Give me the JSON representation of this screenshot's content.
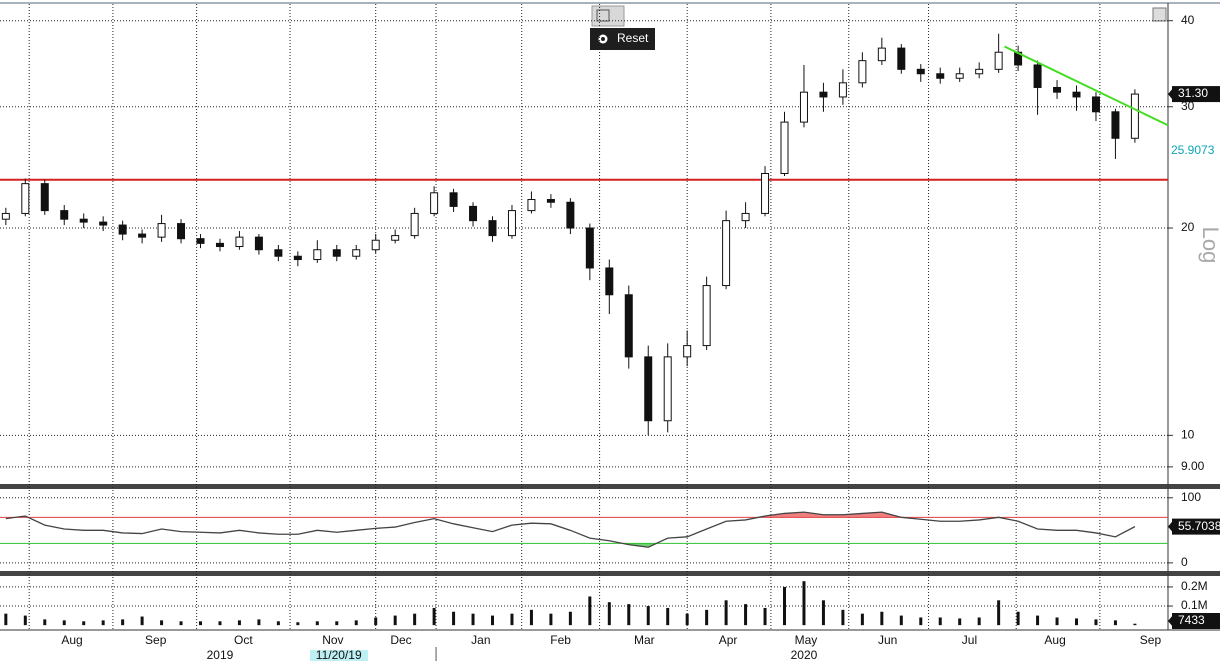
{
  "chart_data": [
    {
      "type": "candlestick",
      "log_scale": true,
      "grid": true,
      "up_color": "#ffffff",
      "down_color": "#111111",
      "ylim": [
        8.47,
        42.3
      ],
      "yticks": [
        40,
        30,
        20,
        10,
        {
          "value": 9,
          "label": "9.00"
        }
      ],
      "axis_label": "Log",
      "open": [
        20.6,
        21.0,
        23.2,
        21.2,
        20.6,
        20.4,
        20.2,
        19.6,
        19.4,
        20.3,
        19.3,
        19.0,
        18.8,
        19.4,
        18.6,
        18.2,
        18.0,
        18.6,
        18.2,
        18.6,
        19.2,
        19.5,
        21.0,
        22.5,
        21.5,
        20.5,
        19.5,
        21.2,
        22.0,
        21.8,
        20.0,
        17.5,
        16.0,
        13.0,
        10.5,
        13.0,
        13.5,
        16.5,
        20.5,
        21.0,
        24.0,
        28.5,
        31.5,
        31.0,
        32.5,
        35.0,
        36.5,
        34.0,
        33.5,
        33.0,
        33.5,
        34.0,
        36.0,
        34.5,
        32.0,
        31.5,
        31.0,
        29.5,
        27.0
      ],
      "high": [
        21.4,
        23.6,
        23.5,
        21.6,
        21.0,
        20.8,
        20.5,
        19.9,
        20.9,
        20.6,
        19.6,
        19.3,
        19.8,
        19.6,
        18.9,
        18.5,
        19.2,
        18.9,
        18.9,
        19.6,
        19.9,
        21.4,
        23.0,
        22.8,
        21.8,
        20.8,
        21.6,
        22.6,
        22.4,
        22.1,
        20.3,
        18.0,
        16.5,
        13.5,
        13.6,
        14.2,
        17.0,
        21.2,
        21.8,
        24.6,
        29.5,
        34.5,
        32.5,
        34.0,
        36.0,
        37.8,
        37.0,
        34.6,
        34.2,
        34.2,
        34.8,
        38.3,
        36.8,
        35.0,
        32.8,
        32.2,
        31.5,
        29.8,
        31.8
      ],
      "low": [
        20.2,
        20.8,
        20.9,
        20.2,
        20.0,
        19.8,
        19.2,
        19.0,
        19.1,
        19.0,
        18.7,
        18.5,
        18.6,
        18.3,
        17.9,
        17.6,
        17.8,
        17.9,
        18.0,
        18.4,
        19.0,
        19.3,
        20.8,
        21.1,
        20.1,
        19.1,
        19.3,
        21.0,
        21.4,
        19.6,
        16.8,
        15.0,
        12.5,
        10.0,
        10.1,
        12.6,
        13.3,
        16.3,
        20.0,
        20.8,
        23.8,
        28.0,
        29.5,
        30.2,
        32.0,
        34.5,
        33.5,
        32.6,
        32.4,
        32.6,
        33.0,
        33.6,
        33.8,
        29.2,
        30.8,
        29.6,
        28.6,
        25.2,
        26.6
      ],
      "close": [
        21.0,
        23.2,
        21.2,
        20.6,
        20.4,
        20.2,
        19.6,
        19.4,
        20.3,
        19.3,
        19.0,
        18.8,
        19.4,
        18.6,
        18.2,
        18.0,
        18.6,
        18.2,
        18.6,
        19.2,
        19.5,
        21.0,
        22.5,
        21.5,
        20.5,
        19.5,
        21.2,
        22.0,
        21.8,
        20.0,
        17.5,
        16.0,
        13.0,
        10.5,
        13.0,
        13.5,
        16.5,
        20.5,
        21.0,
        24.0,
        28.5,
        31.5,
        31.0,
        32.5,
        35.0,
        36.5,
        34.0,
        33.5,
        33.0,
        33.5,
        34.0,
        36.0,
        34.5,
        32.0,
        31.5,
        31.0,
        29.5,
        27.0,
        31.3
      ],
      "last_label": "31.30",
      "support": {
        "value": 23.5,
        "color": "#d42020"
      },
      "trendline": {
        "x": [
          51.3,
          59.7
        ],
        "y": [
          36.7,
          28.2
        ],
        "color": "#44dd22"
      },
      "indicator": {
        "value": 25.9073,
        "color": "#0aa5b5"
      }
    },
    {
      "type": "line",
      "name": "rsi",
      "color": "#444444",
      "ylim": [
        -11,
        112
      ],
      "yticks": [
        100,
        0
      ],
      "grid": true,
      "upper": {
        "value": 70,
        "color": "#e04040",
        "fill": "#f08080"
      },
      "lower": {
        "value": 30,
        "color": "#30c030",
        "fill": "#70d070"
      },
      "values": [
        68,
        72,
        58,
        52,
        50,
        50,
        46,
        45,
        52,
        48,
        47,
        46,
        50,
        46,
        44,
        44,
        50,
        47,
        50,
        53,
        55,
        62,
        68,
        60,
        54,
        48,
        58,
        61,
        60,
        50,
        38,
        34,
        28,
        24,
        38,
        40,
        52,
        64,
        66,
        72,
        76,
        78,
        74,
        74,
        76,
        78,
        70,
        67,
        64,
        64,
        66,
        70,
        64,
        52,
        50,
        50,
        46,
        40,
        55.7038
      ]
    },
    {
      "type": "bar",
      "name": "volume",
      "color": "#111111",
      "ylim": [
        -15000,
        252000
      ],
      "grid": true,
      "yticks": [
        {
          "value": 200000,
          "label": "0.2M"
        },
        {
          "value": 100000,
          "label": "0.1M"
        }
      ],
      "values": [
        60000,
        50000,
        30000,
        25000,
        20000,
        25000,
        30000,
        45000,
        25000,
        20000,
        20000,
        20000,
        25000,
        30000,
        20000,
        15000,
        20000,
        20000,
        25000,
        40000,
        50000,
        60000,
        90000,
        70000,
        60000,
        50000,
        60000,
        80000,
        60000,
        70000,
        150000,
        120000,
        110000,
        100000,
        90000,
        60000,
        80000,
        130000,
        110000,
        90000,
        200000,
        230000,
        130000,
        80000,
        60000,
        70000,
        50000,
        40000,
        40000,
        35000,
        40000,
        130000,
        70000,
        50000,
        40000,
        35000,
        30000,
        25000,
        7433
      ]
    }
  ],
  "xaxis": {
    "xlim": [
      -0.3,
      59.7
    ],
    "xticks": [
      {
        "value": 3.4,
        "label": "Aug"
      },
      {
        "value": 7.7,
        "label": "Sep"
      },
      {
        "value": 12.2,
        "label": "Oct"
      },
      {
        "value": 16.8,
        "label": "Nov"
      },
      {
        "value": 20.3,
        "label": "Dec"
      },
      {
        "value": 24.4,
        "label": "Jan"
      },
      {
        "value": 28.5,
        "label": "Feb"
      },
      {
        "value": 32.8,
        "label": "Mar"
      },
      {
        "value": 37.1,
        "label": "Apr"
      },
      {
        "value": 41.1,
        "label": "May"
      },
      {
        "value": 45.3,
        "label": "Jun"
      },
      {
        "value": 49.5,
        "label": "Jul"
      },
      {
        "value": 53.9,
        "label": "Aug"
      },
      {
        "value": 58.8,
        "label": "Sep"
      }
    ],
    "month_starts": [
      1.2,
      5.5,
      9.8,
      14.6,
      19.0,
      22.1,
      26.5,
      30.5,
      35.0,
      39.3,
      43.3,
      47.4,
      51.9,
      56.2
    ],
    "years": [
      {
        "value": 11.0,
        "label": "2019"
      },
      {
        "value": 41.0,
        "label": "2020"
      }
    ],
    "year_break": 22.1,
    "cursor": {
      "value": 17.1,
      "label": "11/20/19"
    }
  },
  "toolbar": {
    "reset": "Reset"
  }
}
